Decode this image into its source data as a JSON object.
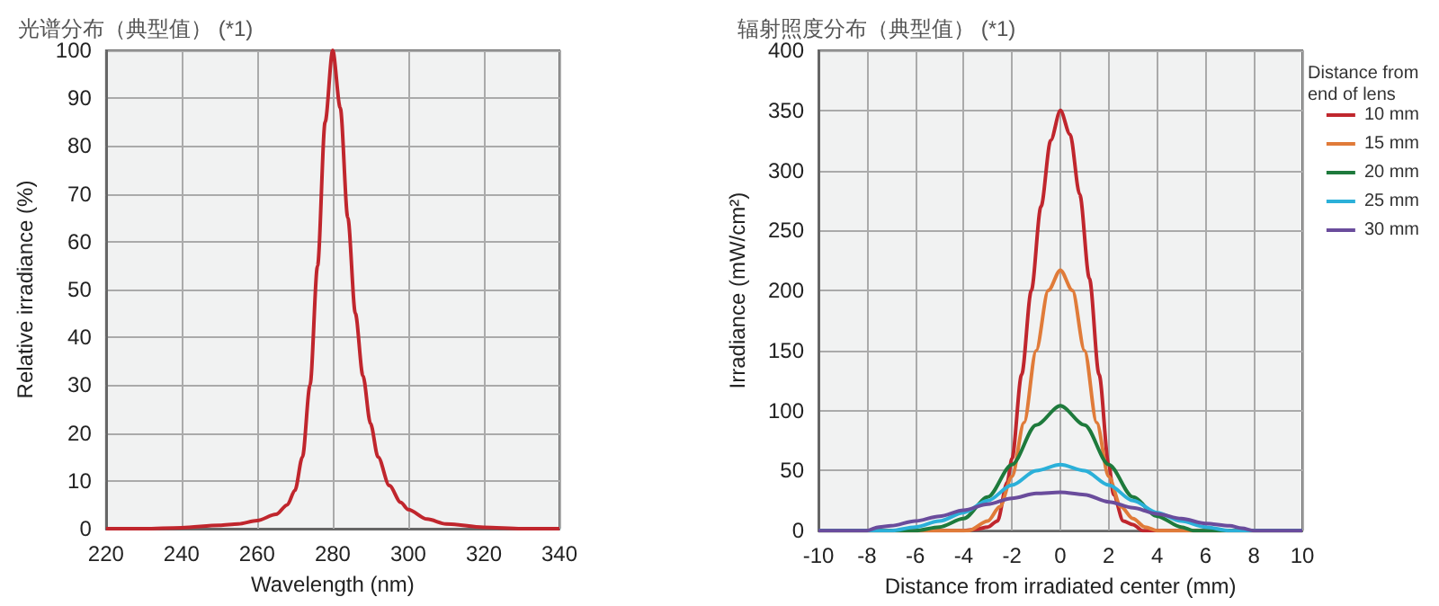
{
  "chart_data": [
    {
      "type": "line",
      "title": "光谱分布（典型值） (*1)",
      "xlabel": "Wavelength (nm)",
      "ylabel": "Relative irradiance (%)",
      "xlim": [
        220,
        340
      ],
      "xticks": [
        220,
        240,
        260,
        280,
        300,
        320,
        340
      ],
      "ylim": [
        0,
        100
      ],
      "yticks": [
        0,
        10,
        20,
        30,
        40,
        50,
        60,
        70,
        80,
        90,
        100
      ],
      "grid": true,
      "legend": false,
      "series": [
        {
          "color": "#c0262d",
          "x": [
            220,
            230,
            240,
            250,
            255,
            260,
            265,
            268,
            270,
            272,
            274,
            276,
            278,
            280,
            282,
            284,
            286,
            288,
            290,
            292,
            295,
            298,
            300,
            305,
            310,
            320,
            330,
            340
          ],
          "values": [
            0,
            0,
            0.2,
            0.7,
            1,
            1.7,
            3,
            5,
            8,
            15,
            30,
            55,
            85,
            100,
            88,
            65,
            45,
            32,
            22,
            15,
            9,
            5.5,
            4,
            2,
            1,
            0.3,
            0,
            0
          ]
        }
      ]
    },
    {
      "type": "line",
      "title": "辐射照度分布（典型值） (*1)",
      "xlabel": "Distance from irradiated center (mm)",
      "ylabel": "Irradiance (mW/cm²)",
      "xlim": [
        -10,
        10
      ],
      "xticks": [
        -10,
        -8,
        -6,
        -4,
        -2,
        0,
        2,
        4,
        6,
        8,
        10
      ],
      "ylim": [
        0,
        400
      ],
      "yticks": [
        0,
        50,
        100,
        150,
        200,
        250,
        300,
        350,
        400
      ],
      "grid": true,
      "legend": "right",
      "legend_title": "Distance from end of lens",
      "series": [
        {
          "name": "10 mm",
          "color": "#c0262d",
          "x": [
            -10,
            -4,
            -3.5,
            -3,
            -2.6,
            -2.2,
            -2,
            -1.6,
            -1.2,
            -0.8,
            -0.4,
            0,
            0.4,
            0.8,
            1.2,
            1.6,
            2,
            2.2,
            2.6,
            3,
            3.4,
            10
          ],
          "values": [
            0,
            0,
            1,
            3,
            8,
            40,
            60,
            130,
            200,
            270,
            325,
            350,
            330,
            280,
            210,
            130,
            55,
            30,
            8,
            5,
            0,
            0
          ]
        },
        {
          "name": "15 mm",
          "color": "#e07b39",
          "x": [
            -10,
            -3.8,
            -3,
            -2.5,
            -2,
            -1.5,
            -1,
            -0.5,
            0,
            0.5,
            1,
            1.5,
            2,
            2.5,
            3,
            3.5,
            4,
            10
          ],
          "values": [
            0,
            0,
            8,
            20,
            45,
            90,
            150,
            200,
            217,
            200,
            150,
            90,
            45,
            20,
            10,
            3,
            0,
            0
          ]
        },
        {
          "name": "20 mm",
          "color": "#1e7a3c",
          "x": [
            -10,
            -6,
            -5,
            -4,
            -3,
            -2,
            -1,
            0,
            1,
            2,
            3,
            4,
            5,
            5.5,
            10
          ],
          "values": [
            0,
            0,
            3,
            10,
            28,
            55,
            88,
            104,
            88,
            55,
            28,
            12,
            3,
            0,
            0
          ]
        },
        {
          "name": "25 mm",
          "color": "#2bb0d9",
          "x": [
            -10,
            -7,
            -6,
            -5,
            -4,
            -3,
            -2,
            -1,
            0,
            1,
            2,
            3,
            4,
            5,
            6,
            7,
            10
          ],
          "values": [
            0,
            0,
            3,
            8,
            15,
            25,
            38,
            50,
            55,
            50,
            38,
            25,
            15,
            8,
            3,
            0,
            0
          ]
        },
        {
          "name": "30 mm",
          "color": "#6a4c9c",
          "x": [
            -10,
            -8,
            -7.5,
            -7,
            -6,
            -5,
            -4,
            -3,
            -2,
            -1,
            0,
            1,
            2,
            3,
            4,
            5,
            6,
            7,
            7.5,
            8,
            10
          ],
          "values": [
            0,
            0,
            3,
            4,
            8,
            12,
            17,
            22,
            27,
            31,
            32,
            30,
            24,
            19,
            14,
            10,
            6,
            4,
            2,
            0,
            0
          ]
        }
      ]
    }
  ]
}
